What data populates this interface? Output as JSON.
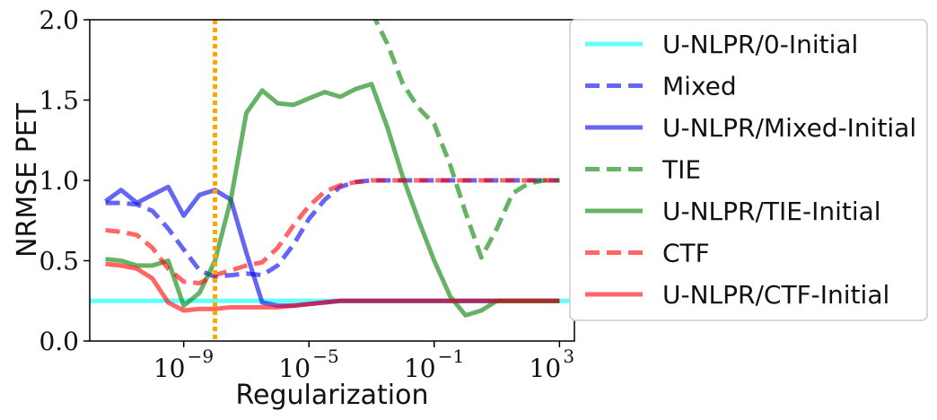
{
  "chart_data": {
    "type": "line",
    "xscale": "log",
    "xlabel": "Regularization",
    "ylabel": "NRMSE PET",
    "xlim": [
      1e-12,
      3000
    ],
    "ylim": [
      0,
      2
    ],
    "xticks": [
      {
        "value": 1e-09,
        "label": "10",
        "exp": "−9"
      },
      {
        "value": 1e-05,
        "label": "10",
        "exp": "−5"
      },
      {
        "value": 0.1,
        "label": "10",
        "exp": "−1"
      },
      {
        "value": 1000,
        "label": "10",
        "exp": "3"
      }
    ],
    "yticks": [
      {
        "value": 0,
        "label": "0.0"
      },
      {
        "value": 0.5,
        "label": "0.5"
      },
      {
        "value": 1,
        "label": "1.0"
      },
      {
        "value": 1.5,
        "label": "1.5"
      },
      {
        "value": 2,
        "label": "2.0"
      }
    ],
    "vline": {
      "x": 1e-08,
      "color": "#ffa500"
    },
    "legend_position": "outside-right",
    "series": [
      {
        "name": "U-NLPR/0-Initial",
        "color": "#00ffff",
        "style": "solid",
        "x": [
          1e-12,
          3000
        ],
        "y": [
          0.25,
          0.25
        ]
      },
      {
        "name": "Mixed",
        "color": "#0000ee",
        "style": "dashed",
        "x": [
          3.2e-12,
          1e-11,
          3.2e-11,
          1e-10,
          3.2e-10,
          1e-09,
          3.2e-09,
          1e-08,
          3.2e-08,
          1e-07,
          3.2e-07,
          1e-06,
          3.2e-06,
          1e-05,
          3.2e-05,
          0.0001,
          0.00032,
          0.001,
          0.0032,
          0.01,
          0.032,
          0.1,
          0.32,
          1,
          3.2,
          10,
          32,
          100,
          316,
          1000
        ],
        "y": [
          0.86,
          0.86,
          0.85,
          0.81,
          0.7,
          0.57,
          0.44,
          0.4,
          0.41,
          0.42,
          0.41,
          0.47,
          0.6,
          0.76,
          0.88,
          0.96,
          0.99,
          1.0,
          1.0,
          1.0,
          1.0,
          1.0,
          1.0,
          1.0,
          1.0,
          1.0,
          1.0,
          1.0,
          1.0,
          1.0
        ]
      },
      {
        "name": "U-NLPR/Mixed-Initial",
        "color": "#0000ee",
        "style": "solid",
        "x": [
          3.2e-12,
          1e-11,
          3.2e-11,
          1e-10,
          3.2e-10,
          1e-09,
          3.2e-09,
          1e-08,
          3.2e-08,
          1e-07,
          3.2e-07,
          1e-06,
          3.2e-06,
          1e-05,
          3.2e-05,
          0.0001,
          0.00032,
          0.001,
          0.0032,
          0.01,
          0.032,
          0.1,
          0.32,
          1,
          3.2,
          10,
          32,
          100,
          316,
          1000
        ],
        "y": [
          0.87,
          0.94,
          0.86,
          0.91,
          0.96,
          0.78,
          0.91,
          0.94,
          0.88,
          0.55,
          0.24,
          0.22,
          0.22,
          0.23,
          0.24,
          0.25,
          0.25,
          0.25,
          0.25,
          0.25,
          0.25,
          0.25,
          0.25,
          0.25,
          0.25,
          0.25,
          0.25,
          0.25,
          0.25,
          0.25
        ]
      },
      {
        "name": "TIE",
        "color": "#008000",
        "style": "dashed",
        "x": [
          0.001,
          0.0032,
          0.01,
          0.032,
          0.1,
          0.32,
          1,
          3.2,
          10,
          32,
          100,
          316,
          1000
        ],
        "y": [
          2.05,
          1.85,
          1.6,
          1.45,
          1.35,
          1.1,
          0.8,
          0.52,
          0.7,
          0.92,
          0.98,
          1.0,
          1.0
        ]
      },
      {
        "name": "U-NLPR/TIE-Initial",
        "color": "#008000",
        "style": "solid",
        "x": [
          3.2e-12,
          1e-11,
          3.2e-11,
          1e-10,
          3.2e-10,
          1e-09,
          3.2e-09,
          1e-08,
          3.2e-08,
          1e-07,
          3.2e-07,
          1e-06,
          3.2e-06,
          1e-05,
          3.2e-05,
          0.0001,
          0.00032,
          0.001,
          0.0032,
          0.01,
          0.032,
          0.1,
          0.32,
          1,
          3.2,
          10,
          32,
          100,
          316,
          1000
        ],
        "y": [
          0.51,
          0.5,
          0.47,
          0.47,
          0.5,
          0.22,
          0.3,
          0.5,
          0.88,
          1.42,
          1.56,
          1.48,
          1.47,
          1.51,
          1.55,
          1.52,
          1.57,
          1.6,
          1.33,
          1.02,
          0.75,
          0.5,
          0.28,
          0.16,
          0.19,
          0.25,
          0.25,
          0.25,
          0.25,
          0.25
        ]
      },
      {
        "name": "CTF",
        "color": "#ff0000",
        "style": "dashed",
        "x": [
          3.2e-12,
          1e-11,
          3.2e-11,
          1e-10,
          3.2e-10,
          1e-09,
          3.2e-09,
          1e-08,
          3.2e-08,
          1e-07,
          3.2e-07,
          1e-06,
          3.2e-06,
          1e-05,
          3.2e-05,
          0.0001,
          0.00032,
          0.001,
          0.0032,
          0.01,
          0.032,
          0.1,
          0.32,
          1,
          3.2,
          10,
          32,
          100,
          316,
          1000
        ],
        "y": [
          0.69,
          0.68,
          0.66,
          0.58,
          0.45,
          0.37,
          0.36,
          0.41,
          0.44,
          0.47,
          0.49,
          0.58,
          0.72,
          0.84,
          0.93,
          0.97,
          0.99,
          1.0,
          1.0,
          1.0,
          1.0,
          1.0,
          1.0,
          1.0,
          1.0,
          1.0,
          1.0,
          1.0,
          1.0,
          1.0
        ]
      },
      {
        "name": "U-NLPR/CTF-Initial",
        "color": "#ff0000",
        "style": "solid",
        "x": [
          3.2e-12,
          1e-11,
          3.2e-11,
          1e-10,
          3.2e-10,
          1e-09,
          3.2e-09,
          1e-08,
          3.2e-08,
          1e-07,
          3.2e-07,
          1e-06,
          3.2e-06,
          1e-05,
          3.2e-05,
          0.0001,
          0.00032,
          0.001,
          0.0032,
          0.01,
          0.032,
          0.1,
          0.32,
          1,
          3.2,
          10,
          32,
          100,
          316,
          1000
        ],
        "y": [
          0.48,
          0.47,
          0.45,
          0.39,
          0.24,
          0.19,
          0.2,
          0.2,
          0.21,
          0.21,
          0.21,
          0.21,
          0.22,
          0.23,
          0.24,
          0.25,
          0.25,
          0.25,
          0.25,
          0.25,
          0.25,
          0.25,
          0.25,
          0.25,
          0.25,
          0.25,
          0.25,
          0.25,
          0.25,
          0.25
        ]
      }
    ]
  }
}
